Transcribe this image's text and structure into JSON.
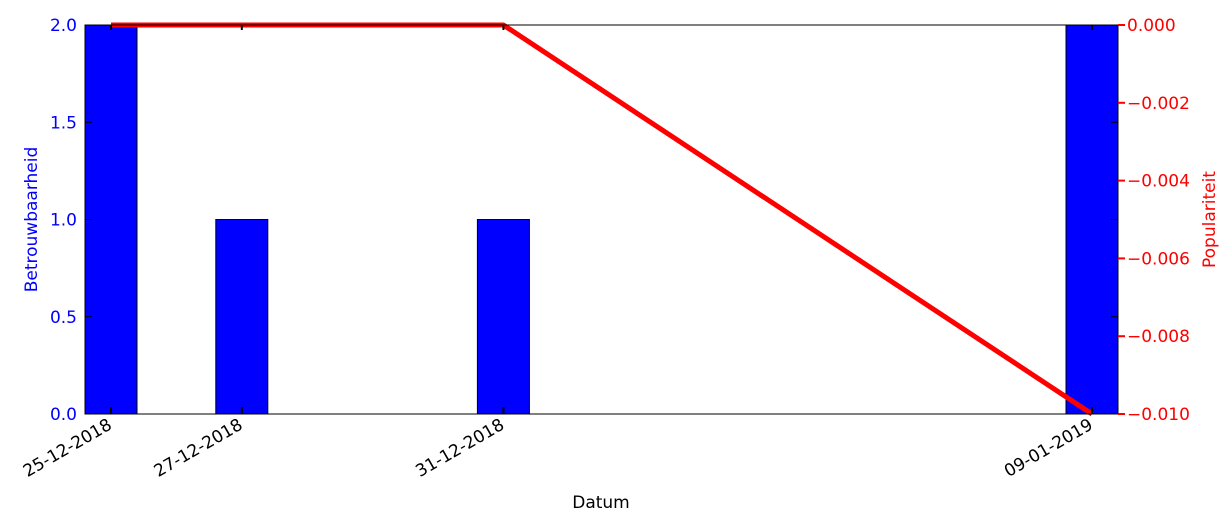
{
  "chart_data": {
    "type": "bar+line",
    "categories": [
      "25-12-2018",
      "27-12-2018",
      "31-12-2018",
      "09-01-2019"
    ],
    "x_dates": [
      "2018-12-25",
      "2018-12-27",
      "2018-12-31",
      "2019-01-09"
    ],
    "xlabel": "Datum",
    "bars": {
      "name": "Betrouwbaarheid",
      "values": [
        2,
        1,
        1,
        2
      ],
      "color": "#0000ff",
      "axis": "left"
    },
    "line": {
      "name": "Populariteit",
      "values": [
        0.0,
        0.0,
        0.0,
        -0.01
      ],
      "color": "#ff0000",
      "axis": "right"
    },
    "left_axis": {
      "label": "Betrouwbaarheid",
      "range": [
        0,
        2
      ],
      "ticks": [
        "0.0",
        "0.5",
        "1.0",
        "1.5",
        "2.0"
      ],
      "color": "#0000ff"
    },
    "right_axis": {
      "label": "Populariteit",
      "range": [
        -0.01,
        0
      ],
      "ticks": [
        "0.000",
        "−0.002",
        "−0.004",
        "−0.006",
        "−0.008",
        "−0.010"
      ],
      "color": "#ff0000"
    },
    "x_range": [
      "2018-12-25",
      "2019-01-09"
    ],
    "grid": false
  }
}
